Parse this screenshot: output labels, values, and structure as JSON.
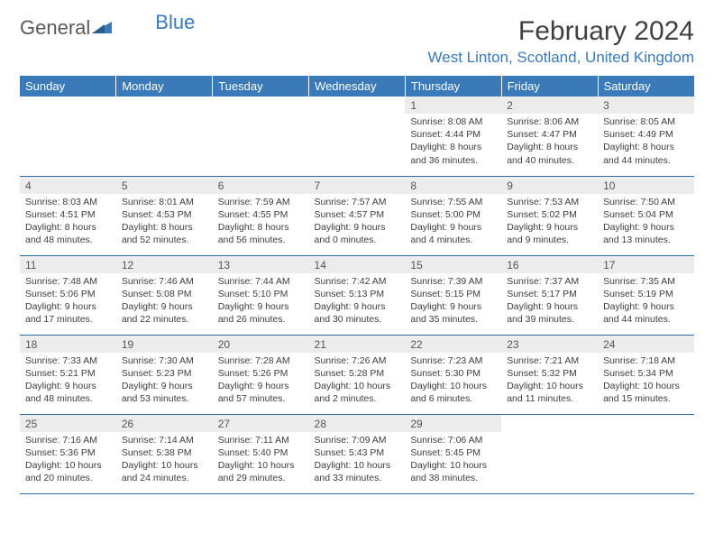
{
  "brand": {
    "name_part1": "General",
    "name_part2": "Blue",
    "accent_color": "#3a7ab8",
    "text_color": "#5a5a5a"
  },
  "title": "February 2024",
  "location": "West Linton, Scotland, United Kingdom",
  "colors": {
    "header_bg": "#3a7ab8",
    "header_text": "#ffffff",
    "daynum_bg": "#ececec",
    "row_border": "#2f6aa3",
    "body_text": "#3d3d3d"
  },
  "weekdays": [
    "Sunday",
    "Monday",
    "Tuesday",
    "Wednesday",
    "Thursday",
    "Friday",
    "Saturday"
  ],
  "grid": [
    [
      null,
      null,
      null,
      null,
      {
        "n": "1",
        "sr": "Sunrise: 8:08 AM",
        "ss": "Sunset: 4:44 PM",
        "d1": "Daylight: 8 hours",
        "d2": "and 36 minutes."
      },
      {
        "n": "2",
        "sr": "Sunrise: 8:06 AM",
        "ss": "Sunset: 4:47 PM",
        "d1": "Daylight: 8 hours",
        "d2": "and 40 minutes."
      },
      {
        "n": "3",
        "sr": "Sunrise: 8:05 AM",
        "ss": "Sunset: 4:49 PM",
        "d1": "Daylight: 8 hours",
        "d2": "and 44 minutes."
      }
    ],
    [
      {
        "n": "4",
        "sr": "Sunrise: 8:03 AM",
        "ss": "Sunset: 4:51 PM",
        "d1": "Daylight: 8 hours",
        "d2": "and 48 minutes."
      },
      {
        "n": "5",
        "sr": "Sunrise: 8:01 AM",
        "ss": "Sunset: 4:53 PM",
        "d1": "Daylight: 8 hours",
        "d2": "and 52 minutes."
      },
      {
        "n": "6",
        "sr": "Sunrise: 7:59 AM",
        "ss": "Sunset: 4:55 PM",
        "d1": "Daylight: 8 hours",
        "d2": "and 56 minutes."
      },
      {
        "n": "7",
        "sr": "Sunrise: 7:57 AM",
        "ss": "Sunset: 4:57 PM",
        "d1": "Daylight: 9 hours",
        "d2": "and 0 minutes."
      },
      {
        "n": "8",
        "sr": "Sunrise: 7:55 AM",
        "ss": "Sunset: 5:00 PM",
        "d1": "Daylight: 9 hours",
        "d2": "and 4 minutes."
      },
      {
        "n": "9",
        "sr": "Sunrise: 7:53 AM",
        "ss": "Sunset: 5:02 PM",
        "d1": "Daylight: 9 hours",
        "d2": "and 9 minutes."
      },
      {
        "n": "10",
        "sr": "Sunrise: 7:50 AM",
        "ss": "Sunset: 5:04 PM",
        "d1": "Daylight: 9 hours",
        "d2": "and 13 minutes."
      }
    ],
    [
      {
        "n": "11",
        "sr": "Sunrise: 7:48 AM",
        "ss": "Sunset: 5:06 PM",
        "d1": "Daylight: 9 hours",
        "d2": "and 17 minutes."
      },
      {
        "n": "12",
        "sr": "Sunrise: 7:46 AM",
        "ss": "Sunset: 5:08 PM",
        "d1": "Daylight: 9 hours",
        "d2": "and 22 minutes."
      },
      {
        "n": "13",
        "sr": "Sunrise: 7:44 AM",
        "ss": "Sunset: 5:10 PM",
        "d1": "Daylight: 9 hours",
        "d2": "and 26 minutes."
      },
      {
        "n": "14",
        "sr": "Sunrise: 7:42 AM",
        "ss": "Sunset: 5:13 PM",
        "d1": "Daylight: 9 hours",
        "d2": "and 30 minutes."
      },
      {
        "n": "15",
        "sr": "Sunrise: 7:39 AM",
        "ss": "Sunset: 5:15 PM",
        "d1": "Daylight: 9 hours",
        "d2": "and 35 minutes."
      },
      {
        "n": "16",
        "sr": "Sunrise: 7:37 AM",
        "ss": "Sunset: 5:17 PM",
        "d1": "Daylight: 9 hours",
        "d2": "and 39 minutes."
      },
      {
        "n": "17",
        "sr": "Sunrise: 7:35 AM",
        "ss": "Sunset: 5:19 PM",
        "d1": "Daylight: 9 hours",
        "d2": "and 44 minutes."
      }
    ],
    [
      {
        "n": "18",
        "sr": "Sunrise: 7:33 AM",
        "ss": "Sunset: 5:21 PM",
        "d1": "Daylight: 9 hours",
        "d2": "and 48 minutes."
      },
      {
        "n": "19",
        "sr": "Sunrise: 7:30 AM",
        "ss": "Sunset: 5:23 PM",
        "d1": "Daylight: 9 hours",
        "d2": "and 53 minutes."
      },
      {
        "n": "20",
        "sr": "Sunrise: 7:28 AM",
        "ss": "Sunset: 5:26 PM",
        "d1": "Daylight: 9 hours",
        "d2": "and 57 minutes."
      },
      {
        "n": "21",
        "sr": "Sunrise: 7:26 AM",
        "ss": "Sunset: 5:28 PM",
        "d1": "Daylight: 10 hours",
        "d2": "and 2 minutes."
      },
      {
        "n": "22",
        "sr": "Sunrise: 7:23 AM",
        "ss": "Sunset: 5:30 PM",
        "d1": "Daylight: 10 hours",
        "d2": "and 6 minutes."
      },
      {
        "n": "23",
        "sr": "Sunrise: 7:21 AM",
        "ss": "Sunset: 5:32 PM",
        "d1": "Daylight: 10 hours",
        "d2": "and 11 minutes."
      },
      {
        "n": "24",
        "sr": "Sunrise: 7:18 AM",
        "ss": "Sunset: 5:34 PM",
        "d1": "Daylight: 10 hours",
        "d2": "and 15 minutes."
      }
    ],
    [
      {
        "n": "25",
        "sr": "Sunrise: 7:16 AM",
        "ss": "Sunset: 5:36 PM",
        "d1": "Daylight: 10 hours",
        "d2": "and 20 minutes."
      },
      {
        "n": "26",
        "sr": "Sunrise: 7:14 AM",
        "ss": "Sunset: 5:38 PM",
        "d1": "Daylight: 10 hours",
        "d2": "and 24 minutes."
      },
      {
        "n": "27",
        "sr": "Sunrise: 7:11 AM",
        "ss": "Sunset: 5:40 PM",
        "d1": "Daylight: 10 hours",
        "d2": "and 29 minutes."
      },
      {
        "n": "28",
        "sr": "Sunrise: 7:09 AM",
        "ss": "Sunset: 5:43 PM",
        "d1": "Daylight: 10 hours",
        "d2": "and 33 minutes."
      },
      {
        "n": "29",
        "sr": "Sunrise: 7:06 AM",
        "ss": "Sunset: 5:45 PM",
        "d1": "Daylight: 10 hours",
        "d2": "and 38 minutes."
      },
      null,
      null
    ]
  ]
}
